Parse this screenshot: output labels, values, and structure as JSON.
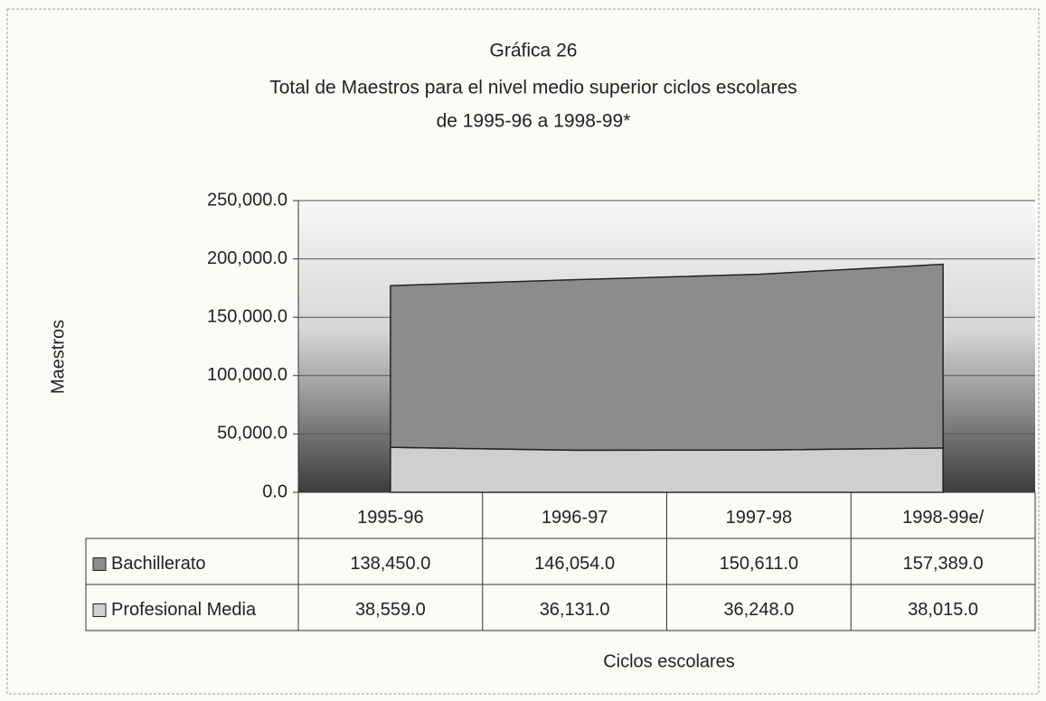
{
  "chart_data": {
    "type": "stacked_area",
    "title": "Gráfica 26",
    "subtitle": [
      "Total de Maestros para el nivel medio superior ciclos escolares",
      "de 1995-96 a 1998-99*"
    ],
    "x_label": "Ciclos escolares",
    "y_label": "Maestros",
    "categories": [
      "1995-96",
      "1996-97",
      "1997-98",
      "1998-99e/"
    ],
    "series": [
      {
        "name": "Bachillerato",
        "color": "#8c8c8c",
        "values": [
          138450,
          146054,
          150611,
          157389
        ],
        "value_labels": [
          "138,450.0",
          "146,054.0",
          "150,611.0",
          "157,389.0"
        ]
      },
      {
        "name": "Profesional Media",
        "color": "#cfcfcf",
        "values": [
          38559,
          36131,
          36248,
          38015
        ],
        "value_labels": [
          "38,559.0",
          "36,131.0",
          "36,248.0",
          "38,015.0"
        ]
      }
    ],
    "stack_order": "Profesional Media at bottom",
    "ylim": [
      0,
      250000
    ],
    "yticks": [
      {
        "value": 0,
        "label": "0.0"
      },
      {
        "value": 50000,
        "label": "50,000.0"
      },
      {
        "value": 100000,
        "label": "100,000.0"
      },
      {
        "value": 150000,
        "label": "150,000.0"
      },
      {
        "value": 200000,
        "label": "200,000.0"
      },
      {
        "value": 250000,
        "label": "250,000.0"
      }
    ],
    "grid": true
  }
}
